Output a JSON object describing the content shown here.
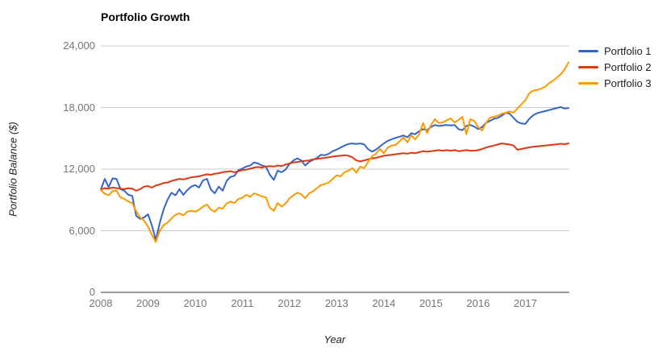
{
  "chart": {
    "title": "Portfolio Growth",
    "x_axis_title": "Year",
    "y_axis_title": "Portfolio Balance ($)"
  },
  "chart_data": {
    "type": "line",
    "title": "Portfolio Growth",
    "xlabel": "Year",
    "ylabel": "Portfolio Balance ($)",
    "x_unit": "month",
    "x_range": [
      "Jan 2008",
      "Dec 2017"
    ],
    "x_tick_labels": [
      "2008",
      "2009",
      "2010",
      "2011",
      "2012",
      "2013",
      "2014",
      "2015",
      "2016",
      "2017"
    ],
    "y_ticks": [
      {
        "label": "24,000",
        "value": 24000
      },
      {
        "label": "18,000",
        "value": 18000
      },
      {
        "label": "12,000",
        "value": 12000
      },
      {
        "label": "6,000",
        "value": 6000
      },
      {
        "label": "0",
        "value": 0
      }
    ],
    "ylim": [
      0,
      24000
    ],
    "grid": "horizontal",
    "grid_color": "#cccccc",
    "baseline_color": "#333333",
    "legend_position": "right",
    "series": [
      {
        "name": "Portfolio 1",
        "color": "#3366CC",
        "values": [
          10000,
          11050,
          10250,
          11100,
          11050,
          10050,
          9900,
          9500,
          9400,
          7450,
          7150,
          7300,
          7600,
          6500,
          5100,
          6750,
          8100,
          9050,
          9700,
          9450,
          10050,
          9500,
          9950,
          10300,
          10450,
          10200,
          10900,
          11050,
          10000,
          9650,
          10300,
          9900,
          10850,
          11250,
          11350,
          11900,
          12050,
          12250,
          12350,
          12650,
          12550,
          12350,
          12250,
          11450,
          10950,
          11850,
          11700,
          11950,
          12500,
          12850,
          13050,
          12850,
          12350,
          12700,
          12900,
          13100,
          13400,
          13350,
          13500,
          13750,
          13900,
          14100,
          14300,
          14450,
          14500,
          14450,
          14500,
          14400,
          13950,
          13700,
          13900,
          14200,
          14500,
          14750,
          14900,
          15050,
          15150,
          15290,
          15100,
          15500,
          15400,
          15700,
          15900,
          15800,
          16100,
          16300,
          16200,
          16250,
          16300,
          16250,
          16300,
          15900,
          15800,
          16200,
          16300,
          16150,
          15900,
          16100,
          16500,
          16700,
          16900,
          17000,
          17200,
          17500,
          17400,
          17000,
          16600,
          16450,
          16400,
          16900,
          17250,
          17450,
          17550,
          17650,
          17750,
          17850,
          17950,
          18050,
          17900,
          17950
        ]
      },
      {
        "name": "Portfolio 2",
        "color": "#DC3912",
        "values": [
          10000,
          10150,
          10100,
          10200,
          10150,
          10100,
          10050,
          10150,
          10100,
          9900,
          10050,
          10300,
          10350,
          10200,
          10400,
          10500,
          10650,
          10700,
          10850,
          10950,
          11050,
          11000,
          11100,
          11200,
          11250,
          11300,
          11400,
          11500,
          11450,
          11550,
          11600,
          11700,
          11750,
          11800,
          11700,
          11800,
          11900,
          11950,
          12050,
          12150,
          12200,
          12150,
          12250,
          12300,
          12250,
          12350,
          12300,
          12450,
          12550,
          12650,
          12700,
          12750,
          12800,
          12850,
          12950,
          13000,
          13050,
          13100,
          13150,
          13220,
          13280,
          13300,
          13350,
          13300,
          13150,
          12850,
          12750,
          12850,
          12950,
          13050,
          13100,
          13200,
          13300,
          13350,
          13400,
          13450,
          13500,
          13550,
          13500,
          13600,
          13550,
          13650,
          13750,
          13700,
          13750,
          13800,
          13850,
          13800,
          13850,
          13800,
          13850,
          13750,
          13800,
          13850,
          13800,
          13800,
          13850,
          13950,
          14100,
          14200,
          14300,
          14400,
          14500,
          14450,
          14400,
          14300,
          13880,
          13960,
          14050,
          14120,
          14180,
          14220,
          14270,
          14300,
          14340,
          14380,
          14420,
          14470,
          14430,
          14500
        ]
      },
      {
        "name": "Portfolio 3",
        "color": "#FF9900",
        "values": [
          10000,
          9600,
          9450,
          9850,
          9900,
          9250,
          9100,
          8850,
          8700,
          7900,
          7300,
          7000,
          6400,
          5600,
          4900,
          6000,
          6550,
          6800,
          7200,
          7550,
          7700,
          7500,
          7850,
          7950,
          7850,
          8050,
          8350,
          8550,
          8050,
          7850,
          8250,
          8150,
          8650,
          8850,
          8700,
          9100,
          9200,
          9500,
          9300,
          9650,
          9500,
          9350,
          9250,
          8250,
          7950,
          8700,
          8350,
          8650,
          9150,
          9450,
          9700,
          9550,
          9150,
          9650,
          9850,
          10150,
          10450,
          10550,
          10700,
          11050,
          11400,
          11300,
          11700,
          11850,
          12100,
          11650,
          12250,
          12100,
          12700,
          13250,
          13500,
          13950,
          13550,
          14100,
          14300,
          14350,
          14700,
          15100,
          14600,
          15300,
          14900,
          15400,
          16500,
          15500,
          16300,
          16860,
          16500,
          16550,
          16750,
          16940,
          16550,
          16800,
          17100,
          15400,
          16860,
          16700,
          16100,
          15760,
          16500,
          17000,
          17100,
          17200,
          17400,
          17500,
          17600,
          17500,
          17900,
          18300,
          18700,
          19400,
          19650,
          19700,
          19850,
          20000,
          20350,
          20600,
          20900,
          21250,
          21700,
          22400
        ]
      }
    ]
  }
}
